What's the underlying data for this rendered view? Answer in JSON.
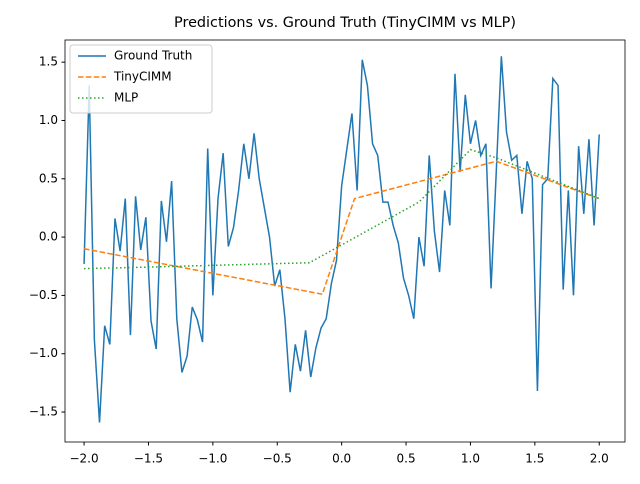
{
  "chart_data": {
    "type": "line",
    "title": "Predictions vs. Ground Truth (TinyCIMM vs MLP)",
    "xlim": [
      -2.148,
      2.2
    ],
    "ylim": [
      -1.757,
      1.69
    ],
    "xticks": [
      {
        "value": -2.0,
        "label": "−2.0"
      },
      {
        "value": -1.5,
        "label": "−1.5"
      },
      {
        "value": -1.0,
        "label": "−1.0"
      },
      {
        "value": -0.5,
        "label": "−0.5"
      },
      {
        "value": 0.0,
        "label": "0.0"
      },
      {
        "value": 0.5,
        "label": "0.5"
      },
      {
        "value": 1.0,
        "label": "1.0"
      },
      {
        "value": 1.5,
        "label": "1.5"
      },
      {
        "value": 2.0,
        "label": "2.0"
      }
    ],
    "yticks": [
      {
        "value": -1.5,
        "label": "−1.5"
      },
      {
        "value": -1.0,
        "label": "−1.0"
      },
      {
        "value": -0.5,
        "label": "−0.5"
      },
      {
        "value": 0.0,
        "label": "0.0"
      },
      {
        "value": 0.5,
        "label": "0.5"
      },
      {
        "value": 1.0,
        "label": "1.0"
      },
      {
        "value": 1.5,
        "label": "1.5"
      }
    ],
    "legend": "upper left",
    "series": [
      {
        "name": "Ground Truth",
        "color": "#1f77b4",
        "linestyle": "solid",
        "x": [
          -2.0,
          -1.96,
          -1.92,
          -1.88,
          -1.84,
          -1.8,
          -1.76,
          -1.72,
          -1.68,
          -1.64,
          -1.6,
          -1.56,
          -1.52,
          -1.48,
          -1.44,
          -1.4,
          -1.36,
          -1.32,
          -1.28,
          -1.24,
          -1.2,
          -1.16,
          -1.12,
          -1.08,
          -1.04,
          -1.0,
          -0.96,
          -0.92,
          -0.88,
          -0.84,
          -0.8,
          -0.76,
          -0.72,
          -0.68,
          -0.64,
          -0.6,
          -0.56,
          -0.52,
          -0.48,
          -0.44,
          -0.4,
          -0.36,
          -0.32,
          -0.28,
          -0.24,
          -0.2,
          -0.16,
          -0.12,
          -0.08,
          -0.04,
          0.0,
          0.04,
          0.08,
          0.12,
          0.16,
          0.2,
          0.24,
          0.28,
          0.32,
          0.36,
          0.4,
          0.44,
          0.48,
          0.52,
          0.56,
          0.6,
          0.64,
          0.68,
          0.72,
          0.76,
          0.8,
          0.84,
          0.88,
          0.92,
          0.96,
          1.0,
          1.04,
          1.08,
          1.12,
          1.16,
          1.2,
          1.24,
          1.28,
          1.32,
          1.36,
          1.4,
          1.44,
          1.48,
          1.52,
          1.56,
          1.6,
          1.64,
          1.68,
          1.72,
          1.76,
          1.8,
          1.84,
          1.88,
          1.92,
          1.96,
          2.0
        ],
        "values": [
          -0.23,
          1.3,
          -0.88,
          -1.59,
          -0.76,
          -0.92,
          0.16,
          -0.12,
          0.33,
          -0.84,
          0.35,
          -0.11,
          0.17,
          -0.72,
          -0.96,
          0.31,
          -0.04,
          0.48,
          -0.7,
          -1.16,
          -1.02,
          -0.6,
          -0.71,
          -0.9,
          0.76,
          -0.5,
          0.33,
          0.72,
          -0.08,
          0.08,
          0.4,
          0.8,
          0.5,
          0.89,
          0.5,
          0.25,
          0.0,
          -0.42,
          -0.28,
          -0.7,
          -1.33,
          -0.92,
          -1.15,
          -0.8,
          -1.2,
          -0.95,
          -0.78,
          -0.7,
          -0.4,
          -0.2,
          0.44,
          0.75,
          1.06,
          0.4,
          1.52,
          1.3,
          0.8,
          0.7,
          0.3,
          0.3,
          0.1,
          -0.05,
          -0.35,
          -0.5,
          -0.7,
          0.0,
          -0.25,
          0.7,
          0.05,
          -0.3,
          0.4,
          0.1,
          1.4,
          0.56,
          1.22,
          0.8,
          1.0,
          0.7,
          0.8,
          -0.44,
          0.55,
          1.55,
          0.9,
          0.66,
          0.7,
          0.2,
          0.65,
          0.5,
          -1.32,
          0.45,
          0.5,
          1.36,
          1.3,
          -0.45,
          0.4,
          -0.5,
          0.78,
          0.2,
          0.84,
          0.1,
          0.88
        ]
      },
      {
        "name": "TinyCIMM",
        "color": "#ff7f0e",
        "linestyle": "dashed",
        "x": [
          -2.0,
          -0.15,
          0.1,
          1.2,
          2.0
        ],
        "values": [
          -0.1,
          -0.49,
          0.33,
          0.65,
          0.33
        ]
      },
      {
        "name": "MLP",
        "color": "#2ca02c",
        "linestyle": "dotted",
        "x": [
          -2.0,
          -1.6,
          -0.25,
          0.6,
          1.0,
          1.2,
          2.0
        ],
        "values": [
          -0.27,
          -0.26,
          -0.22,
          0.3,
          0.75,
          0.68,
          0.33
        ]
      }
    ]
  }
}
